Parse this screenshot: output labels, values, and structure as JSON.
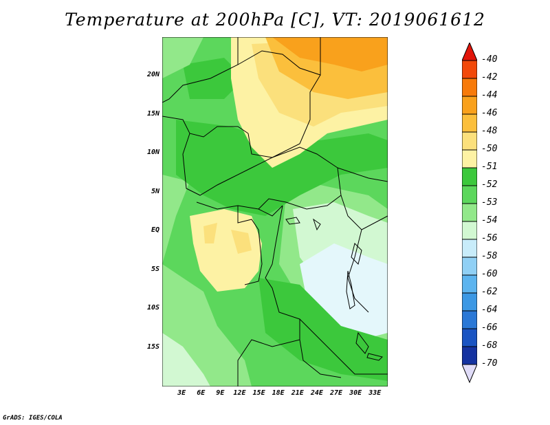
{
  "title": "Temperature at 200hPa [C], VT: 2019061612",
  "credit": "GrADS: IGES/COLA",
  "map": {
    "region": "Central Africa",
    "lat_labels": [
      "20N",
      "15N",
      "10N",
      "5N",
      "EQ",
      "5S",
      "10S",
      "15S"
    ],
    "lon_labels": [
      "3E",
      "6E",
      "9E",
      "12E",
      "15E",
      "18E",
      "21E",
      "24E",
      "27E",
      "30E",
      "33E"
    ],
    "lat_range": [
      -20,
      25
    ],
    "lon_range": [
      0,
      35
    ]
  },
  "colorbar": {
    "labels": [
      "-40",
      "-42",
      "-44",
      "-46",
      "-48",
      "-50",
      "-51",
      "-52",
      "-53",
      "-54",
      "-56",
      "-58",
      "-60",
      "-62",
      "-64",
      "-66",
      "-68",
      "-70"
    ],
    "colors": [
      "#e1150a",
      "#f2490a",
      "#f77a0a",
      "#f9a11c",
      "#fbbf3c",
      "#fbe07c",
      "#fdf2a4",
      "#3cc83c",
      "#5cd75c",
      "#92e88a",
      "#d2f8d2",
      "#c8ecfa",
      "#90d0f5",
      "#5cb4ef",
      "#3c98e4",
      "#2a78d6",
      "#1a54c2",
      "#1432a0",
      "#0c1464"
    ],
    "under_color": "#e0dcf8"
  },
  "field_colors": {
    "c50": "#fdf2a4",
    "c48": "#fbe07c",
    "c46": "#fbbf3c",
    "c44": "#f9a11c",
    "c52": "#3cc83c",
    "c53": "#5cd75c",
    "c54": "#92e88a",
    "c56": "#d2f8d2",
    "c58": "#c8ecfa",
    "c60": "#e4f7fb"
  }
}
